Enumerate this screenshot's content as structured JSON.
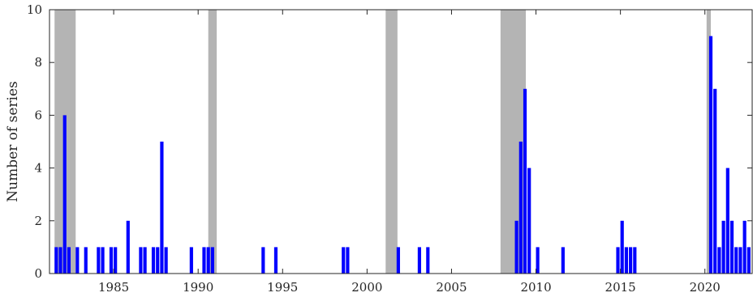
{
  "chart_data": {
    "type": "bar",
    "title": "",
    "xlabel": "",
    "ylabel": "Number of series",
    "xlim": [
      1981.2,
      2022.8
    ],
    "ylim": [
      0,
      10
    ],
    "xticks": [
      1985,
      1990,
      1995,
      2000,
      2005,
      2010,
      2015,
      2020
    ],
    "yticks": [
      0,
      2,
      4,
      6,
      8,
      10
    ],
    "grid": false,
    "legend": "none",
    "bar_color": "#0000ff",
    "shade_color": "#b4b4b4",
    "shaded_periods": [
      [
        1981.5,
        1982.75
      ],
      [
        1990.6,
        1991.1
      ],
      [
        2001.1,
        2001.8
      ],
      [
        2007.9,
        2009.4
      ],
      [
        2020.1,
        2020.35
      ]
    ],
    "bars": [
      {
        "x": 1981.6,
        "y": 1
      },
      {
        "x": 1981.85,
        "y": 1
      },
      {
        "x": 1982.1,
        "y": 6
      },
      {
        "x": 1982.35,
        "y": 1
      },
      {
        "x": 1982.85,
        "y": 1
      },
      {
        "x": 1983.35,
        "y": 1
      },
      {
        "x": 1984.1,
        "y": 1
      },
      {
        "x": 1984.35,
        "y": 1
      },
      {
        "x": 1984.85,
        "y": 1
      },
      {
        "x": 1985.1,
        "y": 1
      },
      {
        "x": 1985.85,
        "y": 2
      },
      {
        "x": 1986.6,
        "y": 1
      },
      {
        "x": 1986.85,
        "y": 1
      },
      {
        "x": 1987.35,
        "y": 1
      },
      {
        "x": 1987.6,
        "y": 1
      },
      {
        "x": 1987.85,
        "y": 5
      },
      {
        "x": 1988.1,
        "y": 1
      },
      {
        "x": 1989.6,
        "y": 1
      },
      {
        "x": 1990.35,
        "y": 1
      },
      {
        "x": 1990.6,
        "y": 1
      },
      {
        "x": 1990.85,
        "y": 1
      },
      {
        "x": 1993.85,
        "y": 1
      },
      {
        "x": 1994.6,
        "y": 1
      },
      {
        "x": 1998.6,
        "y": 1
      },
      {
        "x": 1998.85,
        "y": 1
      },
      {
        "x": 2001.85,
        "y": 1
      },
      {
        "x": 2003.1,
        "y": 1
      },
      {
        "x": 2003.6,
        "y": 1
      },
      {
        "x": 2008.85,
        "y": 2
      },
      {
        "x": 2009.1,
        "y": 5
      },
      {
        "x": 2009.35,
        "y": 7
      },
      {
        "x": 2009.6,
        "y": 4
      },
      {
        "x": 2010.1,
        "y": 1
      },
      {
        "x": 2011.6,
        "y": 1
      },
      {
        "x": 2014.85,
        "y": 1
      },
      {
        "x": 2015.1,
        "y": 2
      },
      {
        "x": 2015.35,
        "y": 1
      },
      {
        "x": 2015.6,
        "y": 1
      },
      {
        "x": 2015.85,
        "y": 1
      },
      {
        "x": 2020.35,
        "y": 9
      },
      {
        "x": 2020.6,
        "y": 7
      },
      {
        "x": 2020.85,
        "y": 1
      },
      {
        "x": 2021.1,
        "y": 2
      },
      {
        "x": 2021.35,
        "y": 4
      },
      {
        "x": 2021.6,
        "y": 2
      },
      {
        "x": 2021.85,
        "y": 1
      },
      {
        "x": 2022.1,
        "y": 1
      },
      {
        "x": 2022.35,
        "y": 2
      },
      {
        "x": 2022.6,
        "y": 1
      }
    ]
  }
}
